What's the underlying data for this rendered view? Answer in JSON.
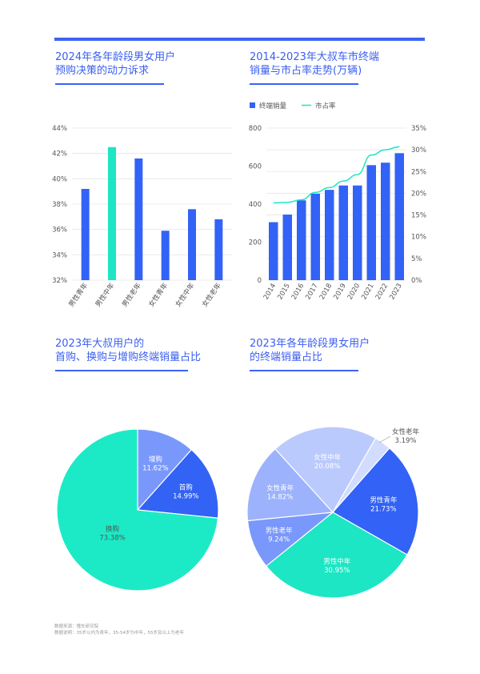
{
  "titles": {
    "c1": "2024年各年龄段男女用户\n预购决策的动力诉求",
    "c2": "2014-2023年大叔车市终端\n销量与市占率走势(万辆)",
    "c3": "2023年大叔用户的\n首购、换购与增购终端销量占比",
    "c4": "2023年各年龄段男女用户\n的终端销量占比"
  },
  "colors": {
    "blue": "#3262f6",
    "teal": "#1de6c4"
  },
  "chart_data": [
    {
      "type": "bar",
      "categories": [
        "男性青年",
        "男性中年",
        "男性老年",
        "女性青年",
        "女性中年",
        "女性老年"
      ],
      "values": [
        39.2,
        42.5,
        41.6,
        35.9,
        37.6,
        36.8
      ],
      "highlight": 1,
      "ylim": [
        32,
        44
      ],
      "yticks": [
        "32%",
        "34%",
        "36%",
        "38%",
        "40%",
        "42%",
        "44%"
      ],
      "grid": true
    },
    {
      "type": "bar+line",
      "legend": [
        "终端销量",
        "市占率"
      ],
      "categories": [
        "2014",
        "2015",
        "2016",
        "2017",
        "2018",
        "2019",
        "2020",
        "2021",
        "2022",
        "2023"
      ],
      "bars": [
        305,
        345,
        420,
        455,
        475,
        498,
        498,
        605,
        618,
        668
      ],
      "line": [
        17.8,
        17.9,
        18.5,
        20.2,
        21.3,
        22.8,
        24.3,
        28.8,
        30.0,
        30.7
      ],
      "ylim_left": [
        0,
        800
      ],
      "yticks_left": [
        "0",
        "200",
        "400",
        "600",
        "800"
      ],
      "ylim_right": [
        0,
        35
      ],
      "yticks_right": [
        "0%",
        "5%",
        "10%",
        "15%",
        "20%",
        "25%",
        "30%",
        "35%"
      ]
    },
    {
      "type": "pie",
      "slices": [
        {
          "label": "增购",
          "value": 11.62,
          "pct": "11.62%",
          "color": "#7a98fb"
        },
        {
          "label": "首购",
          "value": 14.99,
          "pct": "14.99%",
          "color": "#3263f5"
        },
        {
          "label": "换购",
          "value": 73.38,
          "pct": "73.38%",
          "color": "#1ceac6"
        }
      ]
    },
    {
      "type": "pie",
      "slices": [
        {
          "label": "女性老年",
          "value": 3.19,
          "pct": "3.19%",
          "color": "#d2dcfe"
        },
        {
          "label": "男性青年",
          "value": 21.73,
          "pct": "21.73%",
          "color": "#3262f6"
        },
        {
          "label": "男性中年",
          "value": 30.95,
          "pct": "30.95%",
          "color": "#1de6c4"
        },
        {
          "label": "男性老年",
          "value": 9.24,
          "pct": "9.24%",
          "color": "#7a97fb"
        },
        {
          "label": "女性青年",
          "value": 14.82,
          "pct": "14.82%",
          "color": "#9cb2fc"
        },
        {
          "label": "女性中年",
          "value": 20.08,
          "pct": "20.08%",
          "color": "#bbcafd"
        }
      ]
    }
  ],
  "notes": {
    "source": "数据来源：懂车研究院",
    "desc": "数据说明：35岁以内为青年，35-54岁为中年，55岁及以上为老年"
  }
}
